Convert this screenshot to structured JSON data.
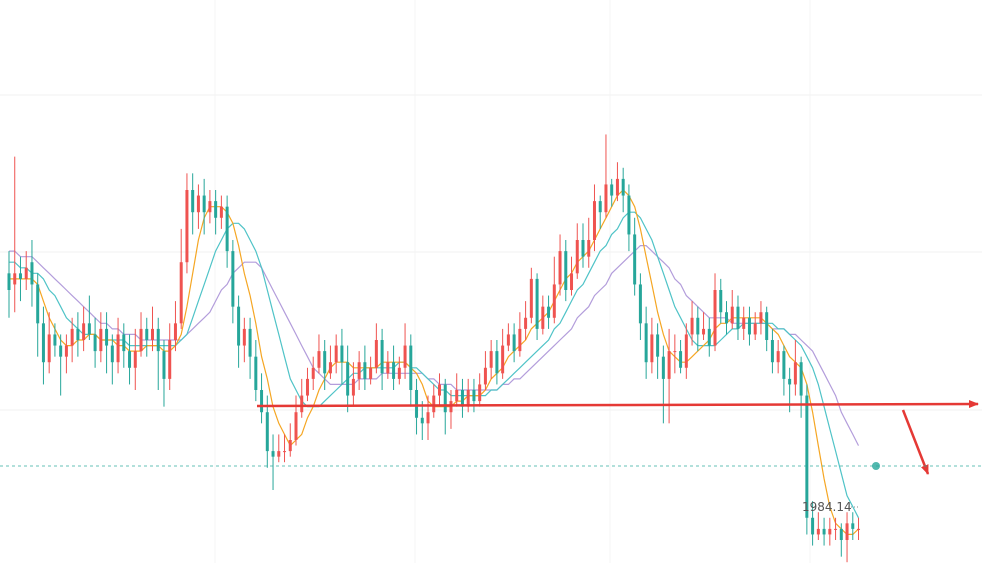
{
  "chart_data": {
    "type": "candlestick",
    "title": "",
    "xlabel": "",
    "ylabel": "",
    "ylim": [
      1972,
      2062
    ],
    "grid": true,
    "colors": {
      "up": "#ef5350",
      "down": "#26a69a",
      "ma_fast": "#f5a623",
      "ma_mid": "#4fc3c7",
      "ma_slow": "#b39ddb",
      "annotation": "#e53935",
      "current_price_line": "#26a69a"
    },
    "candles": [
      [
        2020,
        2017,
        2024,
        2012
      ],
      [
        2018,
        2020,
        2041,
        2013
      ],
      [
        2020,
        2019,
        2023,
        2015
      ],
      [
        2019,
        2021,
        2024,
        2017
      ],
      [
        2022,
        2018,
        2026,
        2014
      ],
      [
        2018,
        2011,
        2020,
        2005
      ],
      [
        2011,
        2004,
        2014,
        2000
      ],
      [
        2004,
        2009,
        2013,
        2002
      ],
      [
        2009,
        2007,
        2011,
        2005
      ],
      [
        2007,
        2005,
        2009,
        1998
      ],
      [
        2005,
        2007,
        2009,
        2002
      ],
      [
        2007,
        2010,
        2012,
        2004
      ],
      [
        2010,
        2008,
        2013,
        2005
      ],
      [
        2008,
        2011,
        2014,
        2006
      ],
      [
        2011,
        2009,
        2016,
        2008
      ],
      [
        2009,
        2006,
        2012,
        2003
      ],
      [
        2006,
        2010,
        2013,
        2004
      ],
      [
        2010,
        2007,
        2013,
        2002
      ],
      [
        2007,
        2004,
        2009,
        2000
      ],
      [
        2004,
        2009,
        2012,
        2002
      ],
      [
        2009,
        2006,
        2011,
        2003
      ],
      [
        2006,
        2003,
        2009,
        2000
      ],
      [
        2003,
        2006,
        2010,
        1999
      ],
      [
        2006,
        2010,
        2013,
        2005
      ],
      [
        2010,
        2008,
        2012,
        2005
      ],
      [
        2008,
        2010,
        2014,
        2006
      ],
      [
        2010,
        2006,
        2012,
        1999
      ],
      [
        2006,
        2001,
        2008,
        1996
      ],
      [
        2001,
        2008,
        2011,
        1999
      ],
      [
        2008,
        2011,
        2015,
        2006
      ],
      [
        2011,
        2022,
        2028,
        2010
      ],
      [
        2022,
        2035,
        2038,
        2020
      ],
      [
        2035,
        2031,
        2038,
        2027
      ],
      [
        2031,
        2034,
        2036,
        2028
      ],
      [
        2034,
        2031,
        2037,
        2027
      ],
      [
        2031,
        2033,
        2035,
        2029
      ],
      [
        2033,
        2030,
        2035,
        2027
      ],
      [
        2030,
        2032,
        2034,
        2028
      ],
      [
        2032,
        2024,
        2034,
        2021
      ],
      [
        2024,
        2014,
        2026,
        2011
      ],
      [
        2014,
        2007,
        2016,
        2003
      ],
      [
        2007,
        2010,
        2012,
        2004
      ],
      [
        2010,
        2005,
        2012,
        2001
      ],
      [
        2005,
        1999,
        2008,
        1997
      ],
      [
        1999,
        1995,
        2002,
        1993
      ],
      [
        1995,
        1988,
        1998,
        1985
      ],
      [
        1988,
        1987,
        1991,
        1981
      ],
      [
        1987,
        1988,
        1991,
        1986
      ],
      [
        1988,
        1988,
        1991,
        1986
      ],
      [
        1988,
        1990,
        1993,
        1987
      ],
      [
        1990,
        1995,
        1998,
        1989
      ],
      [
        1995,
        1998,
        2001,
        1994
      ],
      [
        1998,
        2001,
        2003,
        1997
      ],
      [
        2001,
        2003,
        2005,
        1999
      ],
      [
        2003,
        2006,
        2009,
        2002
      ],
      [
        2006,
        2002,
        2008,
        1999
      ],
      [
        2002,
        2004,
        2007,
        2001
      ],
      [
        2004,
        2007,
        2009,
        2002
      ],
      [
        2007,
        2004,
        2010,
        2000
      ],
      [
        2004,
        1998,
        2007,
        1995
      ],
      [
        1998,
        2001,
        2004,
        1996
      ],
      [
        2001,
        2004,
        2006,
        1999
      ],
      [
        2004,
        2001,
        2007,
        1999
      ],
      [
        2001,
        2003,
        2005,
        2000
      ],
      [
        2003,
        2008,
        2011,
        2002
      ],
      [
        2008,
        2002,
        2010,
        1999
      ],
      [
        2002,
        2004,
        2006,
        2001
      ],
      [
        2004,
        2001,
        2007,
        1999
      ],
      [
        2001,
        2003,
        2005,
        2000
      ],
      [
        2003,
        2007,
        2011,
        2001
      ],
      [
        2007,
        1999,
        2009,
        1996
      ],
      [
        1999,
        1994,
        2001,
        1991
      ],
      [
        1994,
        1993,
        1997,
        1990
      ],
      [
        1993,
        1995,
        1998,
        1990
      ],
      [
        1995,
        1998,
        2000,
        1994
      ],
      [
        1998,
        2000,
        2002,
        1996
      ],
      [
        2000,
        1995,
        2001,
        1991
      ],
      [
        1995,
        1997,
        1999,
        1992
      ],
      [
        1997,
        1999,
        2002,
        1996
      ],
      [
        1999,
        1996,
        2001,
        1994
      ],
      [
        1996,
        1999,
        2001,
        1995
      ],
      [
        1999,
        1997,
        2001,
        1995
      ],
      [
        1997,
        2000,
        2002,
        1996
      ],
      [
        2000,
        2003,
        2006,
        1999
      ],
      [
        2003,
        2006,
        2008,
        2001
      ],
      [
        2006,
        2002,
        2008,
        2000
      ],
      [
        2002,
        2007,
        2010,
        2001
      ],
      [
        2007,
        2009,
        2011,
        2006
      ],
      [
        2009,
        2006,
        2011,
        2004
      ],
      [
        2006,
        2010,
        2013,
        2005
      ],
      [
        2010,
        2012,
        2015,
        2008
      ],
      [
        2012,
        2019,
        2021,
        2011
      ],
      [
        2019,
        2010,
        2020,
        2008
      ],
      [
        2010,
        2014,
        2016,
        2009
      ],
      [
        2014,
        2012,
        2016,
        2010
      ],
      [
        2012,
        2018,
        2023,
        2011
      ],
      [
        2018,
        2024,
        2027,
        2016
      ],
      [
        2024,
        2017,
        2026,
        2015
      ],
      [
        2017,
        2020,
        2023,
        2016
      ],
      [
        2020,
        2026,
        2029,
        2019
      ],
      [
        2026,
        2023,
        2029,
        2021
      ],
      [
        2023,
        2026,
        2030,
        2021
      ],
      [
        2026,
        2033,
        2036,
        2024
      ],
      [
        2033,
        2031,
        2034,
        2028
      ],
      [
        2031,
        2036,
        2045,
        2030
      ],
      [
        2036,
        2034,
        2037,
        2032
      ],
      [
        2034,
        2037,
        2040,
        2033
      ],
      [
        2037,
        2034,
        2039,
        2031
      ],
      [
        2034,
        2027,
        2036,
        2024
      ],
      [
        2027,
        2018,
        2030,
        2016
      ],
      [
        2018,
        2011,
        2020,
        2008
      ],
      [
        2011,
        2004,
        2014,
        2001
      ],
      [
        2004,
        2009,
        2012,
        2002
      ],
      [
        2009,
        2005,
        2011,
        2001
      ],
      [
        2005,
        2001,
        2007,
        1993
      ],
      [
        2001,
        2006,
        2010,
        1993
      ],
      [
        2006,
        2006,
        2009,
        2002
      ],
      [
        2006,
        2003,
        2008,
        2002
      ],
      [
        2003,
        2009,
        2011,
        2001
      ],
      [
        2009,
        2012,
        2015,
        2007
      ],
      [
        2012,
        2009,
        2014,
        2006
      ],
      [
        2009,
        2010,
        2013,
        2008
      ],
      [
        2010,
        2007,
        2012,
        2005
      ],
      [
        2007,
        2017,
        2020,
        2006
      ],
      [
        2017,
        2013,
        2019,
        2011
      ],
      [
        2013,
        2011,
        2015,
        2009
      ],
      [
        2011,
        2014,
        2017,
        2010
      ],
      [
        2014,
        2010,
        2016,
        2008
      ],
      [
        2010,
        2012,
        2014,
        2008
      ],
      [
        2012,
        2009,
        2014,
        2007
      ],
      [
        2009,
        2011,
        2013,
        2008
      ],
      [
        2011,
        2013,
        2015,
        2009
      ],
      [
        2013,
        2008,
        2014,
        2006
      ],
      [
        2008,
        2004,
        2010,
        2002
      ],
      [
        2004,
        2006,
        2008,
        2002
      ],
      [
        2006,
        2001,
        2007,
        1998
      ],
      [
        2001,
        2000,
        2003,
        1995
      ],
      [
        2000,
        2004,
        2008,
        1998
      ],
      [
        2004,
        1998,
        2005,
        1994
      ],
      [
        1998,
        1976,
        2000,
        1973
      ],
      [
        1976,
        1973,
        1979,
        1971
      ],
      [
        1973,
        1974,
        1977,
        1972
      ],
      [
        1974,
        1973,
        1976,
        1971
      ],
      [
        1973,
        1974,
        1976,
        1971
      ],
      [
        1974,
        1974,
        1976,
        1972
      ],
      [
        1974,
        1972,
        1975,
        1969
      ],
      [
        1972,
        1975,
        1977,
        1968
      ],
      [
        1975,
        1974,
        1977,
        1972
      ],
      [
        1974,
        1974,
        1976,
        1972
      ]
    ],
    "ma_fast": [
      2019,
      2019,
      2019,
      2019,
      2019,
      2018,
      2015,
      2012,
      2010,
      2008,
      2007,
      2007,
      2008,
      2008,
      2009,
      2009,
      2008,
      2008,
      2008,
      2007,
      2007,
      2006,
      2006,
      2006,
      2007,
      2007,
      2007,
      2006,
      2006,
      2007,
      2009,
      2014,
      2020,
      2026,
      2030,
      2032,
      2032,
      2032,
      2031,
      2029,
      2025,
      2020,
      2016,
      2011,
      2005,
      2001,
      1996,
      1993,
      1991,
      1989,
      1990,
      1991,
      1994,
      1996,
      1999,
      2001,
      2003,
      2004,
      2004,
      2004,
      2003,
      2003,
      2003,
      2003,
      2003,
      2004,
      2004,
      2004,
      2004,
      2004,
      2003,
      2002,
      2000,
      1997,
      1996,
      1996,
      1996,
      1996,
      1997,
      1997,
      1998,
      1998,
      1998,
      1999,
      2001,
      2002,
      2003,
      2005,
      2006,
      2007,
      2008,
      2010,
      2011,
      2012,
      2013,
      2015,
      2017,
      2019,
      2020,
      2022,
      2023,
      2024,
      2026,
      2028,
      2030,
      2032,
      2034,
      2035,
      2034,
      2032,
      2028,
      2023,
      2018,
      2013,
      2009,
      2006,
      2005,
      2004,
      2004,
      2005,
      2006,
      2007,
      2008,
      2010,
      2011,
      2011,
      2012,
      2012,
      2012,
      2012,
      2012,
      2012,
      2011,
      2010,
      2009,
      2007,
      2005,
      2004,
      2003,
      2000,
      1995,
      1989,
      1983,
      1978,
      1975,
      1974,
      1973,
      1973,
      1974
    ],
    "ma_mid": [
      2022,
      2022,
      2021,
      2021,
      2020,
      2020,
      2019,
      2017,
      2016,
      2014,
      2012,
      2011,
      2010,
      2009,
      2009,
      2009,
      2008,
      2008,
      2008,
      2008,
      2008,
      2007,
      2007,
      2007,
      2007,
      2007,
      2007,
      2007,
      2007,
      2007,
      2008,
      2009,
      2012,
      2015,
      2018,
      2021,
      2024,
      2026,
      2028,
      2029,
      2029,
      2028,
      2026,
      2024,
      2021,
      2017,
      2013,
      2009,
      2005,
      2001,
      1999,
      1997,
      1996,
      1996,
      1996,
      1997,
      1998,
      1999,
      2000,
      2001,
      2002,
      2002,
      2003,
      2003,
      2003,
      2003,
      2003,
      2003,
      2004,
      2004,
      2003,
      2003,
      2002,
      2001,
      2000,
      1999,
      1999,
      1998,
      1998,
      1998,
      1998,
      1998,
      1998,
      1998,
      1999,
      1999,
      2000,
      2001,
      2002,
      2003,
      2004,
      2005,
      2006,
      2007,
      2008,
      2010,
      2011,
      2013,
      2015,
      2017,
      2018,
      2020,
      2022,
      2024,
      2025,
      2027,
      2028,
      2030,
      2031,
      2031,
      2030,
      2028,
      2026,
      2023,
      2020,
      2017,
      2014,
      2012,
      2010,
      2008,
      2007,
      2007,
      2007,
      2007,
      2008,
      2009,
      2010,
      2010,
      2011,
      2011,
      2011,
      2011,
      2011,
      2011,
      2010,
      2010,
      2009,
      2008,
      2007,
      2005,
      2003,
      2000,
      1996,
      1992,
      1988,
      1984,
      1980,
      1978,
      1976
    ],
    "ma_slow": [
      2024,
      2024,
      2023,
      2023,
      2023,
      2022,
      2021,
      2020,
      2019,
      2018,
      2017,
      2016,
      2015,
      2014,
      2013,
      2012,
      2011,
      2011,
      2010,
      2010,
      2009,
      2009,
      2009,
      2008,
      2008,
      2008,
      2008,
      2008,
      2008,
      2008,
      2008,
      2009,
      2010,
      2011,
      2012,
      2013,
      2015,
      2017,
      2018,
      2020,
      2021,
      2022,
      2022,
      2022,
      2021,
      2019,
      2017,
      2015,
      2013,
      2011,
      2009,
      2007,
      2005,
      2003,
      2002,
      2001,
      2000,
      2000,
      2000,
      2000,
      2000,
      2001,
      2001,
      2001,
      2001,
      2002,
      2002,
      2002,
      2002,
      2002,
      2002,
      2002,
      2002,
      2001,
      2001,
      2000,
      2000,
      2000,
      1999,
      1999,
      1999,
      1999,
      1999,
      1999,
      1999,
      1999,
      2000,
      2000,
      2001,
      2001,
      2002,
      2003,
      2004,
      2005,
      2006,
      2007,
      2008,
      2009,
      2010,
      2012,
      2013,
      2014,
      2016,
      2017,
      2018,
      2020,
      2021,
      2022,
      2023,
      2024,
      2025,
      2025,
      2024,
      2023,
      2022,
      2021,
      2019,
      2018,
      2016,
      2015,
      2014,
      2013,
      2012,
      2012,
      2012,
      2012,
      2011,
      2011,
      2011,
      2011,
      2011,
      2011,
      2011,
      2010,
      2010,
      2010,
      2009,
      2009,
      2008,
      2007,
      2006,
      2004,
      2002,
      2000,
      1998,
      1995,
      1993,
      1991,
      1989
    ],
    "annotations": {
      "low_label": "1984.14",
      "horizontal_level": 1986.5,
      "current_price": 1974
    }
  }
}
